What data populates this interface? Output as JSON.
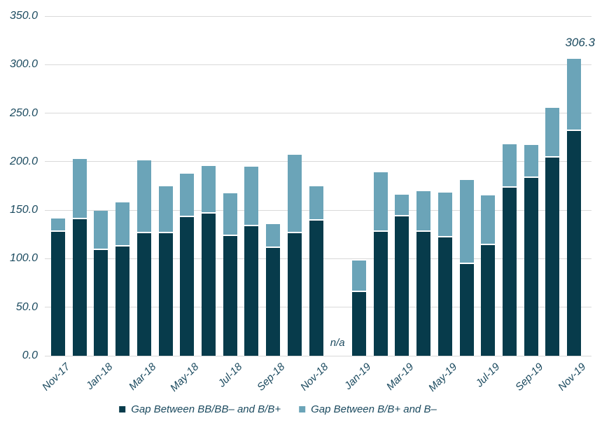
{
  "chart_data": {
    "type": "bar",
    "stacked": true,
    "categories": [
      "Nov-17",
      "Dec-17",
      "Jan-18",
      "Feb-18",
      "Mar-18",
      "Apr-18",
      "May-18",
      "Jun-18",
      "Jul-18",
      "Aug-18",
      "Sep-18",
      "Oct-18",
      "Nov-18",
      "Dec-18",
      "Jan-19",
      "Feb-19",
      "Mar-19",
      "Apr-19",
      "May-19",
      "Jun-19",
      "Jul-19",
      "Aug-19",
      "Sep-19",
      "Oct-19",
      "Nov-19"
    ],
    "series": [
      {
        "name": "Gap Between BB/BB– and B/B+",
        "color": "#073b4b",
        "values": [
          127.7,
          140.7,
          108.9,
          112.6,
          126.3,
          126.3,
          142.9,
          146.5,
          123.4,
          133.5,
          111.1,
          126.3,
          139.2,
          null,
          65.7,
          127.7,
          143.6,
          127.7,
          121.9,
          94.5,
          114.0,
          173.2,
          183.3,
          204.2,
          232.0
        ]
      },
      {
        "name": "Gap Between B/B+ and B–",
        "color": "#6ba4b8",
        "values": [
          13.7,
          62.3,
          40.4,
          45.7,
          75.0,
          48.3,
          44.7,
          49.0,
          44.0,
          61.3,
          24.5,
          80.7,
          35.4,
          null,
          32.4,
          61.3,
          22.4,
          41.8,
          46.1,
          86.5,
          51.0,
          44.8,
          33.9,
          51.2,
          74.3
        ]
      }
    ],
    "x_tick_labels": [
      "Nov-17",
      "Jan-18",
      "Mar-18",
      "May-18",
      "Jul-18",
      "Sep-18",
      "Nov-18",
      "Jan-19",
      "Mar-19",
      "May-19",
      "Jul-19",
      "Sep-19",
      "Nov-19"
    ],
    "label_every": 2,
    "y_axis": {
      "min": 0,
      "max": 350,
      "step": 50,
      "tick_labels": [
        "350.0",
        "300.0",
        "250.0",
        "200.0",
        "150.0",
        "100.0",
        "50.0",
        "0.0"
      ]
    },
    "annotations": {
      "na_label": "n/a",
      "na_category": "Dec-18",
      "value_label": "306.3",
      "value_category": "Nov-19"
    },
    "legend_position": "bottom",
    "grid": true,
    "colors": {
      "axis_text": "#1b4a5f",
      "gridline": "#d9d9d9",
      "background": "#ffffff",
      "separator": "#ffffff"
    }
  }
}
